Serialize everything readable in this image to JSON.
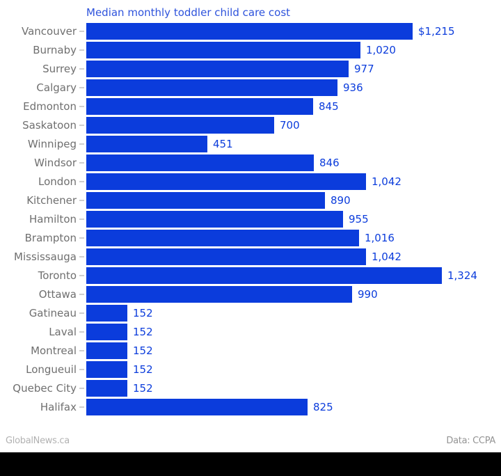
{
  "chart_data": {
    "type": "bar",
    "orientation": "horizontal",
    "title": "Median monthly toddler child care cost",
    "categories": [
      "Vancouver",
      "Burnaby",
      "Surrey",
      "Calgary",
      "Edmonton",
      "Saskatoon",
      "Winnipeg",
      "Windsor",
      "London",
      "Kitchener",
      "Hamilton",
      "Brampton",
      "Mississauga",
      "Toronto",
      "Ottawa",
      "Gatineau",
      "Laval",
      "Montreal",
      "Longueuil",
      "Quebec City",
      "Halifax"
    ],
    "values": [
      1215,
      1020,
      977,
      936,
      845,
      700,
      451,
      846,
      1042,
      890,
      955,
      1016,
      1042,
      1324,
      990,
      152,
      152,
      152,
      152,
      152,
      825
    ],
    "value_labels": [
      "$1,215",
      "1,020",
      "977",
      "936",
      "845",
      "700",
      "451",
      "846",
      "1,042",
      "890",
      "955",
      "1,016",
      "1,042",
      "1,324",
      "990",
      "152",
      "152",
      "152",
      "152",
      "152",
      "825"
    ],
    "xlim": [
      0,
      1324
    ],
    "grid": false,
    "legend": "none",
    "bar_color": "#0b3cdc",
    "value_label_color": "#0b3cdc",
    "title_color": "#2e53dc",
    "category_label_color": "#6f6f6f"
  },
  "footer": {
    "source_left": "GlobalNews.ca",
    "source_right": "Data: CCPA"
  }
}
